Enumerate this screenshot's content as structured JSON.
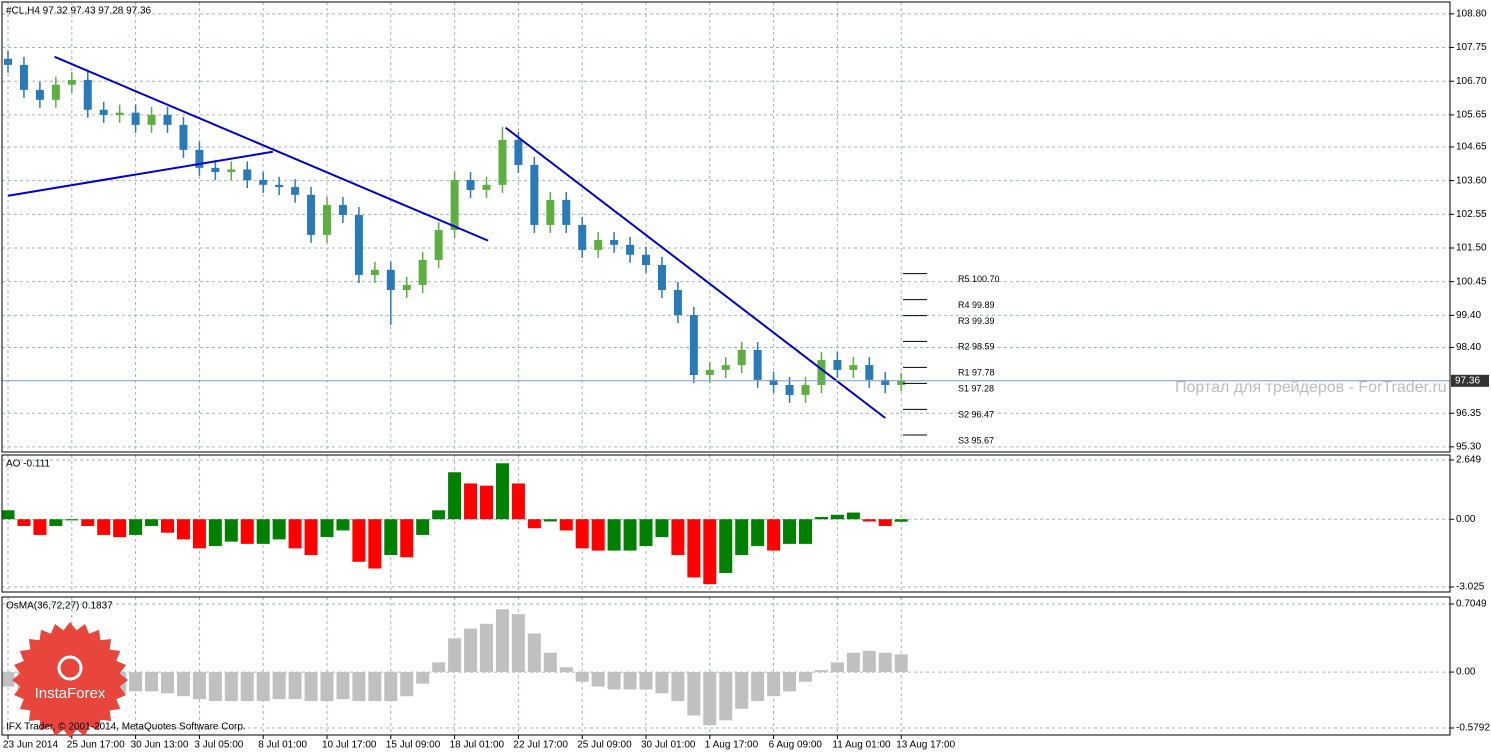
{
  "chart_data": [
    {
      "type": "candlestick",
      "title": "#CL,H4 97.32 97.43 97.28 97.36",
      "categories": [
        "23 Jun 2014",
        null,
        null,
        null,
        "25 Jun 17:00",
        null,
        null,
        null,
        "30 Jun 13:00",
        null,
        null,
        null,
        "3 Jul 05:00",
        null,
        null,
        null,
        "8 Jul 01:00",
        null,
        null,
        null,
        "10 Jul 17:00",
        null,
        null,
        null,
        "15 Jul 09:00",
        null,
        null,
        null,
        "18 Jul 01:00",
        null,
        null,
        null,
        "22 Jul 17:00",
        null,
        null,
        null,
        "25 Jul 09:00",
        null,
        null,
        null,
        "30 Jul 01:00",
        null,
        null,
        null,
        "1 Aug 17:00",
        null,
        null,
        null,
        "6 Aug 09:00",
        null,
        null,
        null,
        "11 Aug 01:00",
        null,
        null,
        null,
        "13 Aug 17:00"
      ],
      "open": [
        107.4,
        107.21,
        106.43,
        106.12,
        106.59,
        106.74,
        105.81,
        105.65,
        105.72,
        105.34,
        105.65,
        105.34,
        104.56,
        104.0,
        103.87,
        103.95,
        103.62,
        103.47,
        103.4,
        103.16,
        101.91,
        102.84,
        102.53,
        100.66,
        100.82,
        100.19,
        100.35,
        101.13,
        102.06,
        103.62,
        103.31,
        103.47,
        104.87,
        104.09,
        102.22,
        103.0,
        102.22,
        101.44,
        101.75,
        101.6,
        101.29,
        100.97,
        100.19,
        99.41,
        97.54,
        97.7,
        97.85,
        98.32,
        97.39,
        97.23,
        96.92,
        97.23,
        98.01,
        97.7,
        97.85,
        97.39,
        97.23
      ],
      "high": [
        107.65,
        107.46,
        106.68,
        106.84,
        106.99,
        106.99,
        106.06,
        105.97,
        105.97,
        105.9,
        105.9,
        105.59,
        104.81,
        104.25,
        104.2,
        104.2,
        103.87,
        103.72,
        103.65,
        103.41,
        103.09,
        103.09,
        102.78,
        101.07,
        101.07,
        100.6,
        101.38,
        102.31,
        103.87,
        103.87,
        103.72,
        105.28,
        105.12,
        104.34,
        103.25,
        103.25,
        102.47,
        102.0,
        102.0,
        101.85,
        101.54,
        101.22,
        100.44,
        99.66,
        97.95,
        98.1,
        98.57,
        98.57,
        97.64,
        97.48,
        97.48,
        98.26,
        98.26,
        98.1,
        98.1,
        97.64,
        97.61
      ],
      "low": [
        106.96,
        106.18,
        105.87,
        105.87,
        106.34,
        105.56,
        105.4,
        105.4,
        105.09,
        105.09,
        105.09,
        104.31,
        103.75,
        103.62,
        103.62,
        103.37,
        103.22,
        103.15,
        102.91,
        101.66,
        101.66,
        102.28,
        100.41,
        100.41,
        99.1,
        99.94,
        100.1,
        100.88,
        101.81,
        103.06,
        103.06,
        103.22,
        103.84,
        101.97,
        101.97,
        101.97,
        101.19,
        101.19,
        101.35,
        101.04,
        100.72,
        99.94,
        99.16,
        97.29,
        97.29,
        97.45,
        97.6,
        97.14,
        96.98,
        96.67,
        96.67,
        96.98,
        97.45,
        97.45,
        97.14,
        96.98,
        97.03
      ],
      "close": [
        107.21,
        106.43,
        106.12,
        106.59,
        106.74,
        105.81,
        105.65,
        105.72,
        105.34,
        105.65,
        105.34,
        104.56,
        104.0,
        103.87,
        103.95,
        103.62,
        103.47,
        103.4,
        103.16,
        101.91,
        102.84,
        102.53,
        100.66,
        100.82,
        100.19,
        100.35,
        101.13,
        102.06,
        103.62,
        103.31,
        103.47,
        104.87,
        104.09,
        102.22,
        103.0,
        102.22,
        101.44,
        101.75,
        101.6,
        101.29,
        100.97,
        100.19,
        99.41,
        97.54,
        97.7,
        97.85,
        98.32,
        97.39,
        97.23,
        96.92,
        97.23,
        98.01,
        97.7,
        97.85,
        97.39,
        97.23,
        97.36
      ],
      "up_color": "#5fae42",
      "down_color": "#2a7ab8",
      "ylim": [
        95.14,
        109.17
      ],
      "yticks": [
        {
          "value": 108.8,
          "label": "108.80"
        },
        107.75,
        {
          "value": 106.7,
          "label": "106.70"
        },
        105.65,
        104.65,
        {
          "value": 103.6,
          "label": "103.60"
        },
        102.55,
        {
          "value": 101.5,
          "label": "101.50"
        },
        100.45,
        {
          "value": 99.4,
          "label": "99.40"
        },
        {
          "value": 98.4,
          "label": "98.40"
        },
        96.35,
        {
          "value": 95.3,
          "label": "95.30"
        }
      ],
      "grid": true,
      "trendline_color": "#0000c8",
      "trendlines": [
        {
          "x": [
            2.92,
            30.1
          ],
          "values": [
            107.46,
            101.73
          ]
        },
        {
          "x": [
            0,
            16.6
          ],
          "values": [
            103.13,
            104.5
          ]
        },
        {
          "x": [
            31.2,
            55.0
          ],
          "values": [
            105.25,
            96.2
          ]
        }
      ],
      "levels": {
        "labels": [
          "R5 100.70",
          "R4 99.89",
          "R3 99.39",
          "R2 98.59",
          "R1 97.78",
          "S1 97.28",
          "S2 96.47",
          "S3 95.67"
        ],
        "values": [
          100.7,
          99.89,
          99.39,
          98.59,
          97.78,
          97.28,
          96.47,
          95.67
        ]
      }
    },
    {
      "type": "bar",
      "title": "AO -0.111",
      "values": [
        0.4,
        -0.3,
        -0.7,
        -0.3,
        -0.05,
        -0.3,
        -0.7,
        -0.8,
        -0.7,
        -0.3,
        -0.6,
        -0.9,
        -1.3,
        -1.2,
        -1.0,
        -1.1,
        -1.1,
        -0.9,
        -1.3,
        -1.6,
        -0.8,
        -0.5,
        -1.9,
        -2.2,
        -1.6,
        -1.7,
        -0.7,
        0.4,
        2.1,
        1.6,
        1.5,
        2.5,
        1.6,
        -0.4,
        -0.1,
        -0.5,
        -1.3,
        -1.4,
        -1.4,
        -1.4,
        -1.2,
        -0.8,
        -1.6,
        -2.6,
        -2.9,
        -2.4,
        -1.6,
        -1.2,
        -1.4,
        -1.1,
        -1.1,
        0.1,
        0.2,
        0.3,
        -0.1,
        -0.3,
        -0.111
      ],
      "up_color": "#008000",
      "down_color": "#ff0000",
      "ylim": [
        -3.25,
        2.87
      ],
      "yticks": [
        2.649,
        {
          "value": 0,
          "label": "0.00"
        },
        -3.025
      ],
      "grid": true
    },
    {
      "type": "bar",
      "title": "OsMA(36,72,27) 0.1837",
      "values": [
        -0.15,
        -0.2,
        -0.22,
        -0.22,
        -0.2,
        -0.2,
        -0.22,
        -0.22,
        -0.2,
        -0.2,
        -0.22,
        -0.25,
        -0.28,
        -0.3,
        -0.3,
        -0.3,
        -0.3,
        -0.28,
        -0.28,
        -0.3,
        -0.3,
        -0.28,
        -0.3,
        -0.3,
        -0.3,
        -0.25,
        -0.12,
        0.1,
        0.35,
        0.45,
        0.5,
        0.65,
        0.6,
        0.4,
        0.2,
        0.05,
        -0.1,
        -0.15,
        -0.18,
        -0.18,
        -0.18,
        -0.22,
        -0.3,
        -0.45,
        -0.55,
        -0.5,
        -0.38,
        -0.3,
        -0.25,
        -0.2,
        -0.1,
        0.02,
        0.1,
        0.2,
        0.22,
        0.2,
        0.1837
      ],
      "color": "#c0c0c0",
      "ylim": [
        -0.6517,
        0.7774
      ],
      "yticks": [
        0.7049,
        {
          "value": 0,
          "label": "0.00"
        },
        -0.5792
      ],
      "grid": true
    }
  ],
  "watermark": "Портал для трейдеров - ForTrader.ru",
  "logo": "InstaForex",
  "footer": "IFX Trader, © 2001-2014, MetaQuotes Software Corp."
}
